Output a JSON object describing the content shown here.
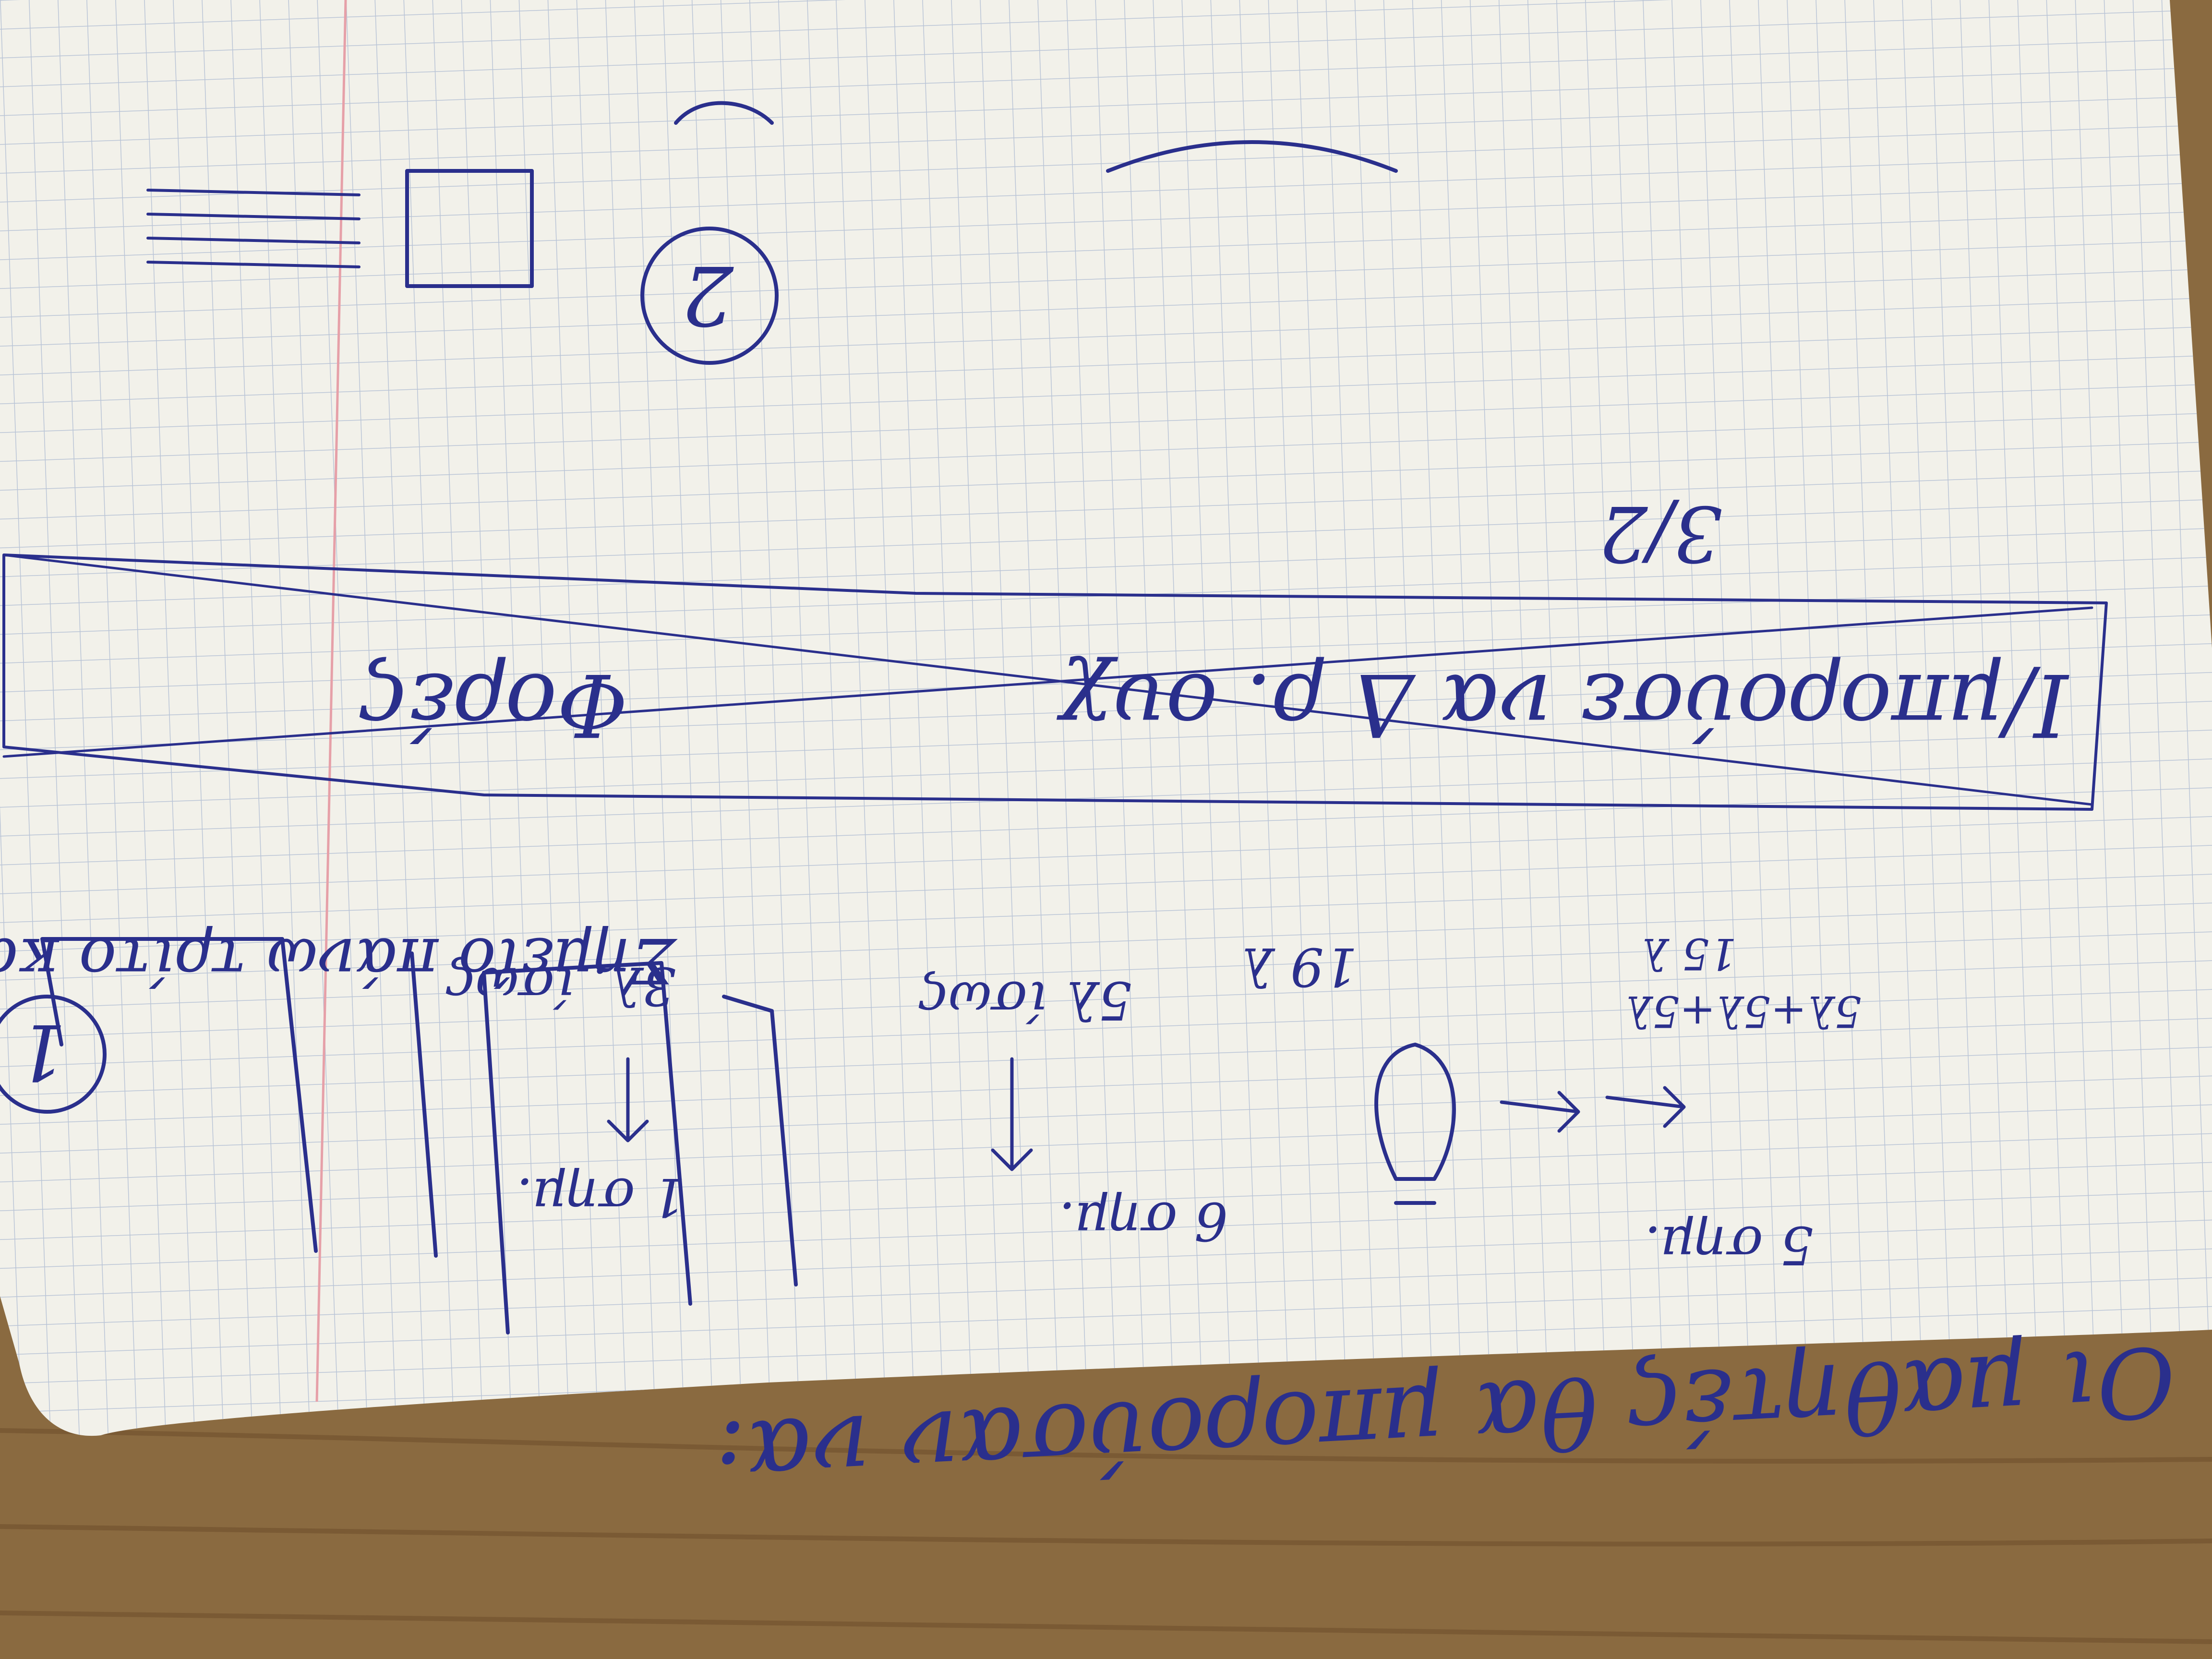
{
  "colors": {
    "paper": "#f2f1ea",
    "grid": "#b9c4d6",
    "margin_line": "#e6a0a8",
    "ink": "#2a2f8c",
    "table": "#8a6a40"
  },
  "note_upright": {
    "title": "Οι μαθητές θα μπορούσαν να:",
    "section2_number": "2",
    "crossed_line1": "Ι/μπορούσε να Δ ρ. ουχ",
    "crossed_line2": "3/2",
    "crossed_extra": "Φορές",
    "section1_number": "1",
    "heading": "Σημείο πάνω τρίτο καλύτερα",
    "col1_top": "3λ. ίσως",
    "col1_bottom": "1 σημ.",
    "col2_mid": "19 λ",
    "col2_bottom": "6 σημ.",
    "col3_top": "5λ ίσως",
    "col3_mid": "5λ+5λ+5λ",
    "col3_mid2": "15 λ",
    "col3_bottom": "5 σημ."
  }
}
